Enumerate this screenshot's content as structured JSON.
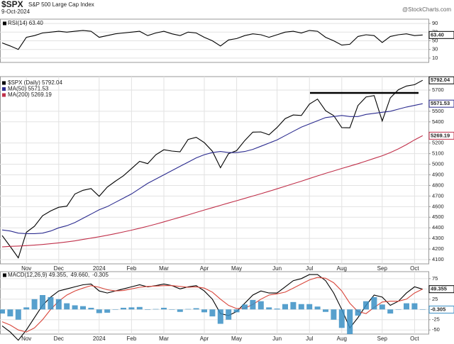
{
  "header": {
    "symbol": "$SPX",
    "name": "S&P 500 Large Cap Index",
    "date": "9-Oct-2024",
    "source": "@StockCharts.com"
  },
  "chart_data": [
    {
      "type": "line",
      "ylim": [
        0,
        100
      ],
      "yticks": [
        10,
        30,
        50,
        70,
        90
      ],
      "grid": true,
      "series": [
        {
          "name": "RSI(14) 63.40",
          "color": "#000000",
          "values": [
            45,
            38,
            30,
            58,
            62,
            68,
            70,
            72,
            70,
            72,
            74,
            72,
            58,
            62,
            66,
            68,
            70,
            72,
            62,
            68,
            72,
            66,
            62,
            70,
            68,
            58,
            50,
            38,
            52,
            55,
            62,
            66,
            64,
            58,
            64,
            70,
            72,
            68,
            74,
            72,
            58,
            50,
            40,
            42,
            60,
            64,
            62,
            46,
            60,
            64,
            66,
            62,
            63.4
          ],
          "value_labels": [
            null,
            null,
            null,
            null,
            null,
            null,
            null,
            null,
            null,
            null,
            null,
            null,
            null,
            null,
            null,
            null,
            null,
            null,
            null,
            null,
            null,
            null,
            null,
            null,
            null,
            null,
            null,
            null,
            null,
            null,
            null,
            null,
            null,
            null,
            null,
            null,
            null,
            null,
            null,
            null,
            null,
            null,
            null,
            null,
            null,
            null,
            null,
            null,
            null,
            null,
            null,
            null,
            "63.40"
          ]
        }
      ]
    },
    {
      "type": "line",
      "ylim": [
        4060,
        5827
      ],
      "yticks": [
        4100,
        4200,
        4300,
        4400,
        4500,
        4600,
        4700,
        4800,
        4900,
        5000,
        5100,
        5200,
        5400,
        5500,
        5700
      ],
      "grid": true,
      "categories": [
        null,
        null,
        null,
        "Nov",
        null,
        null,
        null,
        "Dec",
        null,
        null,
        null,
        null,
        "2024",
        null,
        null,
        null,
        "Feb",
        null,
        null,
        null,
        "Mar",
        null,
        null,
        null,
        null,
        "Apr",
        null,
        null,
        null,
        "May",
        null,
        null,
        null,
        null,
        "Jun",
        null,
        null,
        null,
        "Jul",
        null,
        null,
        null,
        "Aug",
        null,
        null,
        null,
        null,
        "Sep",
        null,
        null,
        null,
        "Oct",
        null
      ],
      "series": [
        {
          "name": "$SPX (Daily) 5792.04",
          "color": "#000000",
          "values": [
            4327,
            4224,
            4117,
            4358,
            4415,
            4514,
            4559,
            4594,
            4604,
            4719,
            4754,
            4770,
            4697,
            4784,
            4840,
            4891,
            4959,
            5027,
            5006,
            5089,
            5137,
            5124,
            5117,
            5234,
            5254,
            5204,
            5123,
            4967,
            5100,
            5128,
            5223,
            5303,
            5305,
            5278,
            5347,
            5431,
            5465,
            5460,
            5567,
            5615,
            5505,
            5459,
            5346,
            5344,
            5554,
            5635,
            5648,
            5408,
            5626,
            5703,
            5738,
            5751,
            5792.04
          ]
        },
        {
          "name": "MA(50) 5571.53",
          "color": "#2b2b8f",
          "values": [
            4380,
            4370,
            4350,
            4345,
            4345,
            4350,
            4370,
            4400,
            4420,
            4450,
            4490,
            4530,
            4570,
            4600,
            4640,
            4680,
            4720,
            4770,
            4820,
            4860,
            4900,
            4940,
            4980,
            5020,
            5060,
            5090,
            5110,
            5120,
            5110,
            5110,
            5120,
            5140,
            5170,
            5200,
            5230,
            5270,
            5310,
            5350,
            5380,
            5410,
            5440,
            5450,
            5460,
            5450,
            5450,
            5470,
            5480,
            5490,
            5500,
            5520,
            5540,
            5555,
            5571.53
          ]
        },
        {
          "name": "MA(200) 5269.19",
          "color": "#c0304a",
          "values": [
            4220,
            4225,
            4228,
            4232,
            4237,
            4243,
            4250,
            4258,
            4267,
            4277,
            4290,
            4303,
            4316,
            4330,
            4345,
            4361,
            4378,
            4396,
            4415,
            4435,
            4456,
            4478,
            4500,
            4522,
            4545,
            4568,
            4590,
            4612,
            4634,
            4656,
            4678,
            4700,
            4722,
            4745,
            4768,
            4792,
            4816,
            4840,
            4865,
            4890,
            4914,
            4937,
            4960,
            4982,
            5005,
            5030,
            5055,
            5080,
            5110,
            5145,
            5185,
            5230,
            5269.19
          ]
        }
      ]
    },
    {
      "type": "line",
      "ylim": [
        -60,
        92
      ],
      "yticks": [
        75,
        50,
        25,
        0,
        -25,
        -50
      ],
      "grid": true,
      "categories": [
        null,
        null,
        null,
        "Nov",
        null,
        null,
        null,
        "Dec",
        null,
        null,
        null,
        null,
        "2024",
        null,
        null,
        null,
        "Feb",
        null,
        null,
        null,
        "Mar",
        null,
        null,
        null,
        null,
        "Apr",
        null,
        null,
        null,
        "May",
        null,
        null,
        null,
        null,
        "Jun",
        null,
        null,
        null,
        "Jul",
        null,
        null,
        null,
        "Aug",
        null,
        null,
        null,
        null,
        "Sep",
        null,
        null,
        null,
        "Oct",
        null
      ],
      "series": [
        {
          "name": "MACD(12,26,9) 49.355,",
          "color": "#000000",
          "values": [
            -40,
            -55,
            -75,
            -50,
            -20,
            10,
            30,
            45,
            50,
            55,
            60,
            62,
            45,
            40,
            45,
            50,
            55,
            60,
            55,
            58,
            62,
            58,
            50,
            55,
            58,
            45,
            25,
            -10,
            -15,
            -5,
            15,
            35,
            45,
            40,
            40,
            55,
            70,
            75,
            85,
            85,
            70,
            40,
            0,
            -45,
            -20,
            10,
            35,
            30,
            10,
            20,
            40,
            55,
            49.355
          ]
        },
        {
          "name": "49.660,",
          "color": "#d9463b",
          "values": [
            -30,
            -38,
            -50,
            -55,
            -45,
            -25,
            0,
            20,
            35,
            45,
            52,
            58,
            54,
            48,
            45,
            46,
            50,
            54,
            56,
            57,
            58,
            58,
            56,
            54,
            55,
            52,
            42,
            25,
            10,
            2,
            3,
            12,
            25,
            35,
            38,
            42,
            52,
            62,
            72,
            78,
            76,
            65,
            45,
            15,
            -5,
            -10,
            5,
            18,
            20,
            20,
            25,
            40,
            49.66
          ]
        },
        {
          "name": "-0.305",
          "color": "#3a8fc4",
          "type": "bar",
          "values": [
            -10,
            -17,
            -25,
            5,
            25,
            35,
            30,
            25,
            15,
            10,
            8,
            4,
            -9,
            -8,
            0,
            4,
            5,
            6,
            -1,
            1,
            4,
            0,
            -6,
            1,
            3,
            -7,
            -17,
            -35,
            -25,
            -7,
            12,
            23,
            20,
            5,
            2,
            13,
            18,
            13,
            13,
            7,
            -6,
            -25,
            -45,
            -60,
            -15,
            20,
            30,
            12,
            -10,
            0,
            15,
            15,
            -0.305
          ]
        }
      ]
    }
  ]
}
